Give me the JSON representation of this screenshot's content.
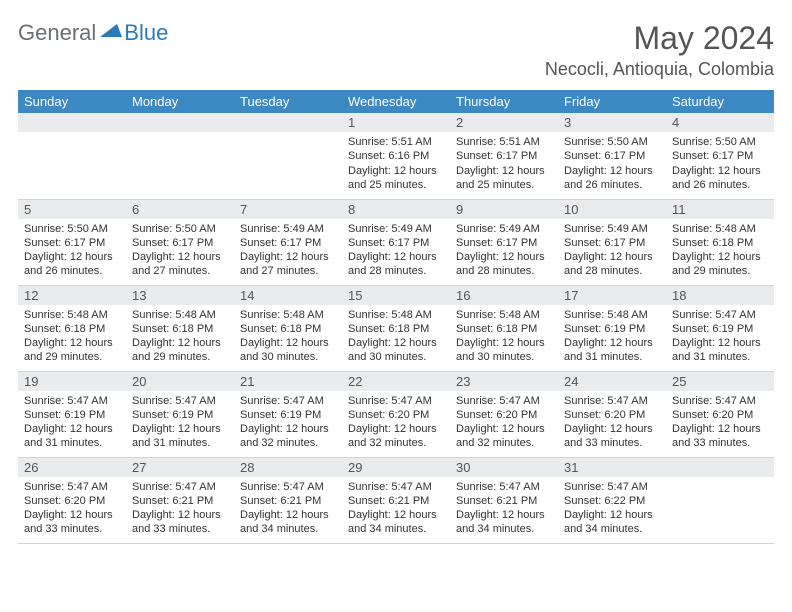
{
  "logo": {
    "text1": "General",
    "text2": "Blue"
  },
  "title": "May 2024",
  "location": "Necocli, Antioquia, Colombia",
  "colors": {
    "header_bg": "#3b88c3",
    "header_text": "#ffffff",
    "daynum_bg": "#e9ebed",
    "border": "#cfd4d8"
  },
  "weekdays": [
    "Sunday",
    "Monday",
    "Tuesday",
    "Wednesday",
    "Thursday",
    "Friday",
    "Saturday"
  ],
  "weeks": [
    [
      null,
      null,
      null,
      {
        "n": "1",
        "sr": "5:51 AM",
        "ss": "6:16 PM",
        "dl": "12 hours and 25 minutes."
      },
      {
        "n": "2",
        "sr": "5:51 AM",
        "ss": "6:17 PM",
        "dl": "12 hours and 25 minutes."
      },
      {
        "n": "3",
        "sr": "5:50 AM",
        "ss": "6:17 PM",
        "dl": "12 hours and 26 minutes."
      },
      {
        "n": "4",
        "sr": "5:50 AM",
        "ss": "6:17 PM",
        "dl": "12 hours and 26 minutes."
      }
    ],
    [
      {
        "n": "5",
        "sr": "5:50 AM",
        "ss": "6:17 PM",
        "dl": "12 hours and 26 minutes."
      },
      {
        "n": "6",
        "sr": "5:50 AM",
        "ss": "6:17 PM",
        "dl": "12 hours and 27 minutes."
      },
      {
        "n": "7",
        "sr": "5:49 AM",
        "ss": "6:17 PM",
        "dl": "12 hours and 27 minutes."
      },
      {
        "n": "8",
        "sr": "5:49 AM",
        "ss": "6:17 PM",
        "dl": "12 hours and 28 minutes."
      },
      {
        "n": "9",
        "sr": "5:49 AM",
        "ss": "6:17 PM",
        "dl": "12 hours and 28 minutes."
      },
      {
        "n": "10",
        "sr": "5:49 AM",
        "ss": "6:17 PM",
        "dl": "12 hours and 28 minutes."
      },
      {
        "n": "11",
        "sr": "5:48 AM",
        "ss": "6:18 PM",
        "dl": "12 hours and 29 minutes."
      }
    ],
    [
      {
        "n": "12",
        "sr": "5:48 AM",
        "ss": "6:18 PM",
        "dl": "12 hours and 29 minutes."
      },
      {
        "n": "13",
        "sr": "5:48 AM",
        "ss": "6:18 PM",
        "dl": "12 hours and 29 minutes."
      },
      {
        "n": "14",
        "sr": "5:48 AM",
        "ss": "6:18 PM",
        "dl": "12 hours and 30 minutes."
      },
      {
        "n": "15",
        "sr": "5:48 AM",
        "ss": "6:18 PM",
        "dl": "12 hours and 30 minutes."
      },
      {
        "n": "16",
        "sr": "5:48 AM",
        "ss": "6:18 PM",
        "dl": "12 hours and 30 minutes."
      },
      {
        "n": "17",
        "sr": "5:48 AM",
        "ss": "6:19 PM",
        "dl": "12 hours and 31 minutes."
      },
      {
        "n": "18",
        "sr": "5:47 AM",
        "ss": "6:19 PM",
        "dl": "12 hours and 31 minutes."
      }
    ],
    [
      {
        "n": "19",
        "sr": "5:47 AM",
        "ss": "6:19 PM",
        "dl": "12 hours and 31 minutes."
      },
      {
        "n": "20",
        "sr": "5:47 AM",
        "ss": "6:19 PM",
        "dl": "12 hours and 31 minutes."
      },
      {
        "n": "21",
        "sr": "5:47 AM",
        "ss": "6:19 PM",
        "dl": "12 hours and 32 minutes."
      },
      {
        "n": "22",
        "sr": "5:47 AM",
        "ss": "6:20 PM",
        "dl": "12 hours and 32 minutes."
      },
      {
        "n": "23",
        "sr": "5:47 AM",
        "ss": "6:20 PM",
        "dl": "12 hours and 32 minutes."
      },
      {
        "n": "24",
        "sr": "5:47 AM",
        "ss": "6:20 PM",
        "dl": "12 hours and 33 minutes."
      },
      {
        "n": "25",
        "sr": "5:47 AM",
        "ss": "6:20 PM",
        "dl": "12 hours and 33 minutes."
      }
    ],
    [
      {
        "n": "26",
        "sr": "5:47 AM",
        "ss": "6:20 PM",
        "dl": "12 hours and 33 minutes."
      },
      {
        "n": "27",
        "sr": "5:47 AM",
        "ss": "6:21 PM",
        "dl": "12 hours and 33 minutes."
      },
      {
        "n": "28",
        "sr": "5:47 AM",
        "ss": "6:21 PM",
        "dl": "12 hours and 34 minutes."
      },
      {
        "n": "29",
        "sr": "5:47 AM",
        "ss": "6:21 PM",
        "dl": "12 hours and 34 minutes."
      },
      {
        "n": "30",
        "sr": "5:47 AM",
        "ss": "6:21 PM",
        "dl": "12 hours and 34 minutes."
      },
      {
        "n": "31",
        "sr": "5:47 AM",
        "ss": "6:22 PM",
        "dl": "12 hours and 34 minutes."
      },
      null
    ]
  ],
  "labels": {
    "sunrise": "Sunrise:",
    "sunset": "Sunset:",
    "daylight": "Daylight:"
  }
}
